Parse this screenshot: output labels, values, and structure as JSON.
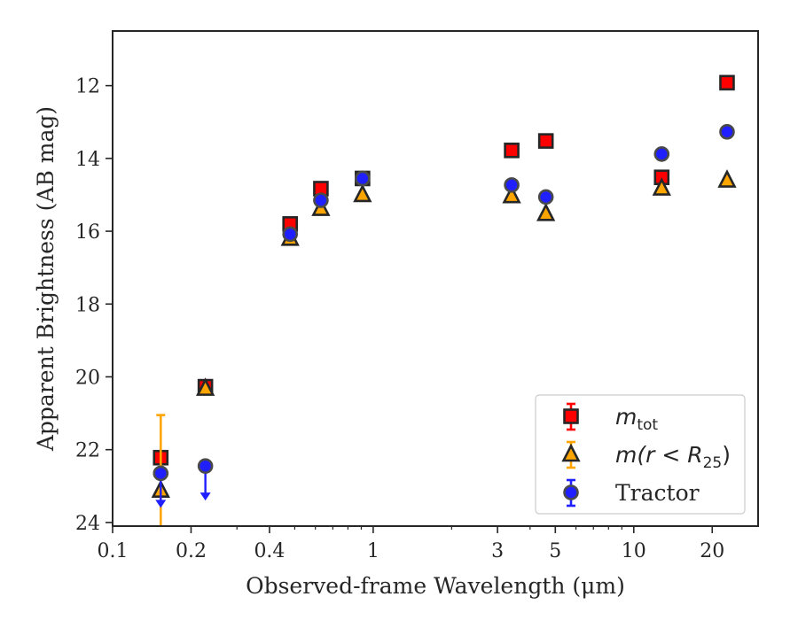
{
  "chart_data": {
    "type": "scatter",
    "title": "",
    "xlabel": "Observed-frame Wavelength (μm)",
    "ylabel": "Apparent Brightness (AB mag)",
    "xscale": "log",
    "xlim": [
      0.1,
      30
    ],
    "ylim": [
      24.1,
      10.5
    ],
    "y_inverted": true,
    "grid": false,
    "legend_position": "lower-right",
    "xticks": [
      0.1,
      0.2,
      0.4,
      1,
      3,
      5,
      10,
      20
    ],
    "xtick_labels": [
      "0.1",
      "0.2",
      "0.4",
      "1",
      "3",
      "5",
      "10",
      "20"
    ],
    "yticks": [
      12,
      14,
      16,
      18,
      20,
      22,
      24
    ],
    "ytick_labels": [
      "12",
      "14",
      "16",
      "18",
      "20",
      "22",
      "24"
    ],
    "series": [
      {
        "name": "m_tot",
        "legend_label": "m",
        "legend_sub": "tot",
        "marker": "square",
        "color": "#ff0000",
        "edgecolor": "#262626",
        "points": [
          {
            "x": 0.153,
            "y": 22.22
          },
          {
            "x": 0.227,
            "y": 20.27
          },
          {
            "x": 0.48,
            "y": 15.8
          },
          {
            "x": 0.63,
            "y": 14.83
          },
          {
            "x": 0.91,
            "y": 14.55
          },
          {
            "x": 3.4,
            "y": 13.78
          },
          {
            "x": 4.6,
            "y": 13.52
          },
          {
            "x": 12.8,
            "y": 14.52
          },
          {
            "x": 22.8,
            "y": 11.92
          }
        ]
      },
      {
        "name": "m(r < R_25)",
        "legend_label": "m(r < R",
        "legend_sub": "25",
        "legend_suffix": ")",
        "marker": "triangle",
        "color": "#ffa500",
        "edgecolor": "#262626",
        "points": [
          {
            "x": 0.153,
            "y": 23.12,
            "yerr": [
              21.05,
              24.1
            ]
          },
          {
            "x": 0.227,
            "y": 20.32
          },
          {
            "x": 0.48,
            "y": 16.2
          },
          {
            "x": 0.63,
            "y": 15.38
          },
          {
            "x": 0.91,
            "y": 15.0
          },
          {
            "x": 3.4,
            "y": 15.03
          },
          {
            "x": 4.6,
            "y": 15.52
          },
          {
            "x": 12.8,
            "y": 14.82
          },
          {
            "x": 22.8,
            "y": 14.6
          }
        ]
      },
      {
        "name": "Tractor",
        "marker": "circle",
        "color": "#1f1fff",
        "edgecolor": "#4a4a4a",
        "points": [
          {
            "x": 0.153,
            "y": 22.65,
            "upper_limit": true
          },
          {
            "x": 0.227,
            "y": 22.45,
            "upper_limit": true
          },
          {
            "x": 0.48,
            "y": 16.08
          },
          {
            "x": 0.63,
            "y": 15.15
          },
          {
            "x": 0.91,
            "y": 14.55
          },
          {
            "x": 3.4,
            "y": 14.73
          },
          {
            "x": 4.6,
            "y": 15.06
          },
          {
            "x": 12.8,
            "y": 13.88
          },
          {
            "x": 22.8,
            "y": 13.27
          }
        ]
      }
    ]
  }
}
